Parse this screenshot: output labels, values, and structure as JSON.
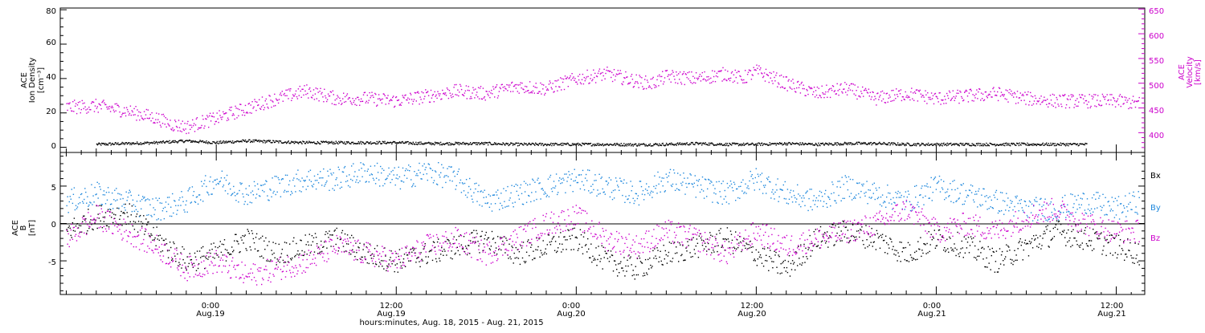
{
  "colors": {
    "black": "#000000",
    "magenta": "#cc00cc",
    "blue": "#1f88dd",
    "axis": "#000000"
  },
  "panel_top": {
    "left_axis_label_lines": [
      "ACE",
      "Ion Density",
      "[cm⁻³]"
    ],
    "right_axis_label_lines": [
      "ACE",
      "Velocity",
      "[km/s]"
    ],
    "left_ticks": [
      "0",
      "20",
      "40",
      "60",
      "80"
    ],
    "right_ticks": [
      "400",
      "450",
      "500",
      "550",
      "600",
      "650"
    ]
  },
  "panel_bottom": {
    "left_axis_label_lines": [
      "ACE",
      "B",
      "[nT]"
    ],
    "left_ticks": [
      "-5",
      "0",
      "5"
    ],
    "legend": [
      "Bx",
      "By",
      "Bz"
    ]
  },
  "x_axis": {
    "tick_times": [
      "0:00",
      "12:00",
      "0:00",
      "12:00",
      "0:00",
      "12:00"
    ],
    "tick_dates": [
      "Aug.19",
      "Aug.19",
      "Aug.20",
      "Aug.20",
      "Aug.21",
      "Aug.21"
    ],
    "title": "hours:minutes, Aug. 18, 2015 - Aug. 21, 2015"
  },
  "chart_data": [
    {
      "type": "scatter",
      "panel": "top",
      "xlabel": "hours:minutes, Aug. 18, 2015 - Aug. 21, 2015",
      "x_unit": "hours since Aug.18 00:00",
      "xlim": [
        13.6,
        85.9
      ],
      "grid": false,
      "series": [
        {
          "axis": "left",
          "ylabel": "ACE Ion Density [cm⁻³]",
          "ylim": [
            -3,
            81
          ],
          "color": "#000000",
          "points": [
            [
              16,
              2
            ],
            [
              18,
              2.5
            ],
            [
              20,
              3
            ],
            [
              22,
              4
            ],
            [
              24,
              3
            ],
            [
              26,
              4
            ],
            [
              28,
              3.5
            ],
            [
              30,
              3
            ],
            [
              32,
              3
            ],
            [
              34,
              3
            ],
            [
              36,
              3
            ],
            [
              38,
              2.5
            ],
            [
              40,
              2.5
            ],
            [
              42,
              2.5
            ],
            [
              44,
              2
            ],
            [
              46,
              2
            ],
            [
              48,
              2
            ],
            [
              50,
              2
            ],
            [
              52,
              1.8
            ],
            [
              54,
              2
            ],
            [
              56,
              2.5
            ],
            [
              58,
              2
            ],
            [
              60,
              2
            ],
            [
              62,
              2.5
            ],
            [
              64,
              2
            ],
            [
              66,
              2.5
            ],
            [
              68,
              2.5
            ],
            [
              70,
              2
            ],
            [
              72,
              2
            ],
            [
              74,
              2
            ],
            [
              76,
              2
            ],
            [
              78,
              2
            ],
            [
              80,
              2
            ],
            [
              82,
              2
            ]
          ]
        },
        {
          "axis": "right",
          "ylabel": "ACE Velocity [km/s]",
          "ylim": [
            360,
            652
          ],
          "color": "#cc00cc",
          "points": [
            [
              14,
              452
            ],
            [
              16,
              455
            ],
            [
              18,
              445
            ],
            [
              20,
              430
            ],
            [
              21,
              418
            ],
            [
              22,
              412
            ],
            [
              23,
              422
            ],
            [
              24,
              430
            ],
            [
              26,
              450
            ],
            [
              28,
              470
            ],
            [
              30,
              485
            ],
            [
              32,
              470
            ],
            [
              34,
              470
            ],
            [
              36,
              465
            ],
            [
              38,
              475
            ],
            [
              40,
              485
            ],
            [
              42,
              480
            ],
            [
              44,
              495
            ],
            [
              46,
              490
            ],
            [
              48,
              510
            ],
            [
              50,
              520
            ],
            [
              52,
              505
            ],
            [
              53,
              500
            ],
            [
              54,
              515
            ],
            [
              56,
              510
            ],
            [
              58,
              520
            ],
            [
              59,
              510
            ],
            [
              60,
              525
            ],
            [
              62,
              500
            ],
            [
              64,
              480
            ],
            [
              66,
              490
            ],
            [
              68,
              470
            ],
            [
              70,
              480
            ],
            [
              72,
              470
            ],
            [
              74,
              475
            ],
            [
              76,
              480
            ],
            [
              78,
              470
            ],
            [
              80,
              465
            ],
            [
              82,
              465
            ],
            [
              84,
              465
            ],
            [
              85.5,
              460
            ]
          ]
        }
      ]
    },
    {
      "type": "scatter",
      "panel": "bottom",
      "ylabel": "ACE B [nT]",
      "ylim": [
        -9.5,
        9.5
      ],
      "xlim": [
        13.6,
        85.9
      ],
      "x_unit": "hours since Aug.18 00:00",
      "grid": false,
      "series": [
        {
          "name": "Bx",
          "color": "#000000",
          "points": [
            [
              14,
              -1
            ],
            [
              16,
              1
            ],
            [
              18,
              1.5
            ],
            [
              20,
              -2
            ],
            [
              22,
              -5
            ],
            [
              24,
              -4
            ],
            [
              26,
              -2
            ],
            [
              28,
              -4
            ],
            [
              30,
              -3
            ],
            [
              32,
              -2
            ],
            [
              34,
              -4
            ],
            [
              36,
              -5
            ],
            [
              38,
              -4
            ],
            [
              40,
              -3
            ],
            [
              42,
              -2
            ],
            [
              44,
              -4
            ],
            [
              46,
              -3
            ],
            [
              48,
              -2
            ],
            [
              50,
              -5
            ],
            [
              52,
              -6
            ],
            [
              54,
              -4
            ],
            [
              56,
              -3
            ],
            [
              58,
              -2
            ],
            [
              60,
              -4
            ],
            [
              62,
              -6
            ],
            [
              64,
              -2
            ],
            [
              66,
              -1
            ],
            [
              68,
              -2
            ],
            [
              70,
              -4
            ],
            [
              72,
              -2
            ],
            [
              74,
              -3
            ],
            [
              76,
              -5
            ],
            [
              78,
              -3
            ],
            [
              80,
              -1
            ],
            [
              82,
              -2
            ],
            [
              84,
              -3
            ],
            [
              85.5,
              -4
            ]
          ]
        },
        {
          "name": "By",
          "color": "#1f88dd",
          "points": [
            [
              14,
              3
            ],
            [
              16,
              4
            ],
            [
              18,
              3
            ],
            [
              20,
              2
            ],
            [
              22,
              3
            ],
            [
              24,
              6
            ],
            [
              26,
              4
            ],
            [
              28,
              5
            ],
            [
              30,
              6
            ],
            [
              32,
              6
            ],
            [
              34,
              7
            ],
            [
              36,
              6
            ],
            [
              38,
              7
            ],
            [
              40,
              6
            ],
            [
              42,
              3
            ],
            [
              44,
              4
            ],
            [
              46,
              5
            ],
            [
              48,
              6
            ],
            [
              50,
              5
            ],
            [
              52,
              4
            ],
            [
              54,
              6
            ],
            [
              56,
              5
            ],
            [
              58,
              4
            ],
            [
              60,
              6
            ],
            [
              62,
              4
            ],
            [
              64,
              3
            ],
            [
              66,
              5
            ],
            [
              68,
              4
            ],
            [
              70,
              3
            ],
            [
              72,
              5
            ],
            [
              74,
              4
            ],
            [
              76,
              3
            ],
            [
              78,
              2
            ],
            [
              80,
              2
            ],
            [
              82,
              3
            ],
            [
              84,
              2
            ],
            [
              85.5,
              3
            ]
          ]
        },
        {
          "name": "Bz",
          "color": "#cc00cc",
          "points": [
            [
              14,
              -2
            ],
            [
              16,
              1
            ],
            [
              18,
              -1
            ],
            [
              20,
              -3
            ],
            [
              22,
              -6
            ],
            [
              24,
              -5
            ],
            [
              26,
              -7
            ],
            [
              28,
              -6
            ],
            [
              30,
              -5
            ],
            [
              32,
              -3
            ],
            [
              34,
              -4
            ],
            [
              36,
              -5
            ],
            [
              38,
              -3
            ],
            [
              40,
              -2
            ],
            [
              42,
              -4
            ],
            [
              44,
              -2
            ],
            [
              46,
              0
            ],
            [
              48,
              1
            ],
            [
              50,
              -2
            ],
            [
              52,
              -3
            ],
            [
              54,
              -1
            ],
            [
              56,
              -2
            ],
            [
              58,
              -4
            ],
            [
              60,
              -1
            ],
            [
              62,
              -3
            ],
            [
              64,
              -2
            ],
            [
              66,
              -1
            ],
            [
              68,
              0
            ],
            [
              70,
              2
            ],
            [
              72,
              -1
            ],
            [
              74,
              0
            ],
            [
              76,
              -1
            ],
            [
              78,
              1
            ],
            [
              80,
              2
            ],
            [
              82,
              0
            ],
            [
              84,
              -1
            ],
            [
              85.5,
              -1
            ]
          ]
        }
      ]
    }
  ]
}
